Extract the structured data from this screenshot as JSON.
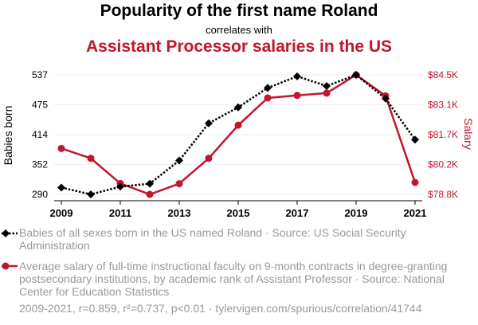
{
  "chart_data": {
    "type": "line",
    "title": "Popularity of the first name Roland",
    "subtitle": "correlates with",
    "title2": "Assistant Processor salaries in the US",
    "ylabel": "Babies born",
    "y2label": "Salary",
    "x": [
      2009,
      2010,
      2011,
      2012,
      2013,
      2014,
      2015,
      2016,
      2017,
      2018,
      2019,
      2020,
      2021
    ],
    "xticks": [
      "2009",
      "2011",
      "2013",
      "2015",
      "2017",
      "2019",
      "2021"
    ],
    "yticks": [
      "537",
      "475",
      "414",
      "352",
      "290"
    ],
    "y2ticks": [
      "$84.5K",
      "$83.1K",
      "$81.7K",
      "$80.2K",
      "$78.8K"
    ],
    "ylim": [
      290,
      537
    ],
    "y2lim": [
      78.8,
      84.5
    ],
    "series": [
      {
        "name": "Babies of all sexes born in the US named Roland · Source: US Social Security Administration",
        "color": "#000000",
        "values": [
          304,
          290,
          306,
          312,
          360,
          437,
          470,
          510,
          534,
          514,
          537,
          488,
          403
        ]
      },
      {
        "name": "Average salary of full-time instructional faculty on 9-month contracts in degree-granting postsecondary institutions, by academic rank of Assistant Professor · Source: National Center for Education Statistics",
        "color": "#c0162e",
        "values": [
          80.99,
          80.52,
          79.32,
          78.8,
          79.31,
          80.52,
          82.1,
          83.4,
          83.52,
          83.63,
          84.5,
          83.5,
          79.37
        ]
      }
    ],
    "footer": "2009-2021, r=0.859, r²=0.737, p<0.01 · tylervigen.com/spurious/correlation/41744"
  }
}
